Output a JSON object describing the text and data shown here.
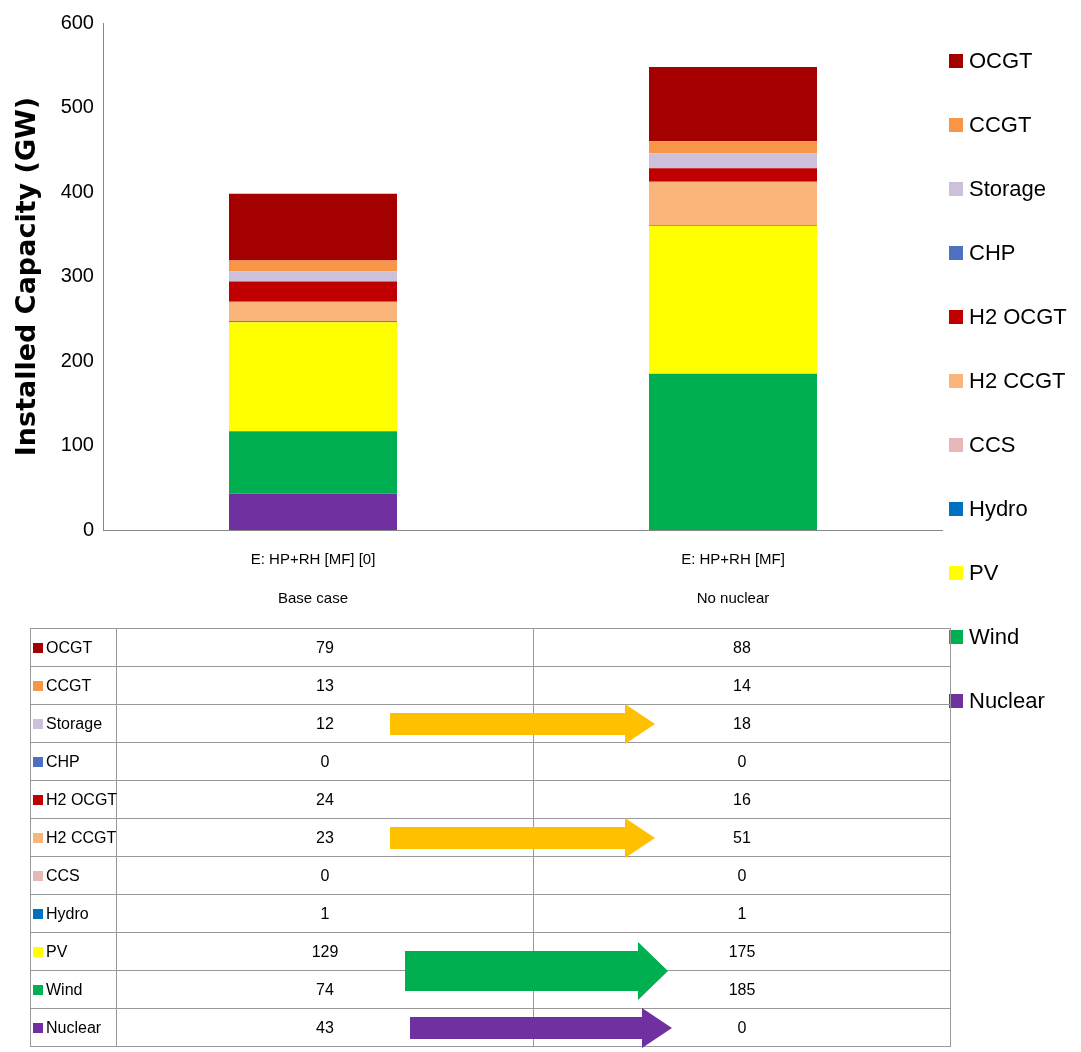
{
  "chart_data": {
    "type": "bar",
    "ylabel": "Installed Capacity (GW)",
    "categories": [
      "E: HP+RH [MF] [0]\nBase case",
      "E: HP+RH [MF]\nNo nuclear"
    ],
    "stacked": true,
    "ylim": [
      0,
      600
    ],
    "yticks": [
      0,
      100,
      200,
      300,
      400,
      500,
      600
    ],
    "grid": false,
    "legend": "right",
    "series": [
      {
        "name": "Nuclear",
        "color": "#7030a0",
        "values": [
          43,
          0
        ],
        "value_labels": [
          "43",
          "0"
        ]
      },
      {
        "name": "Wind",
        "color": "#00b050",
        "values": [
          74,
          185
        ],
        "value_labels": [
          "74",
          "185"
        ]
      },
      {
        "name": "PV",
        "color": "#ffff00",
        "values": [
          129,
          175
        ],
        "value_labels": [
          "129",
          "175"
        ]
      },
      {
        "name": "Hydro",
        "color": "#0070c0",
        "values": [
          1,
          1
        ],
        "value_labels": [
          "1",
          "1"
        ]
      },
      {
        "name": "CCS",
        "color": "#e6b9b8",
        "values": [
          0,
          0
        ],
        "value_labels": [
          "0",
          "0"
        ]
      },
      {
        "name": "H2 CCGT",
        "color": "#fbb47a",
        "values": [
          23,
          51
        ],
        "value_labels": [
          "23",
          "51"
        ]
      },
      {
        "name": "H2 OCGT",
        "color": "#c00000",
        "values": [
          24,
          16
        ],
        "value_labels": [
          "24",
          "16"
        ]
      },
      {
        "name": "CHP",
        "color": "#4f6fc0",
        "values": [
          0,
          0
        ],
        "value_labels": [
          "0",
          "0"
        ]
      },
      {
        "name": "Storage",
        "color": "#ccc0da",
        "values": [
          12,
          18
        ],
        "value_labels": [
          "12",
          "18"
        ]
      },
      {
        "name": "CCGT",
        "color": "#f79646",
        "values": [
          13,
          14
        ],
        "value_labels": [
          "13",
          "14"
        ]
      },
      {
        "name": "OCGT",
        "color": "#a50000",
        "values": [
          79,
          88
        ],
        "value_labels": [
          "79",
          "88"
        ]
      }
    ]
  }
}
